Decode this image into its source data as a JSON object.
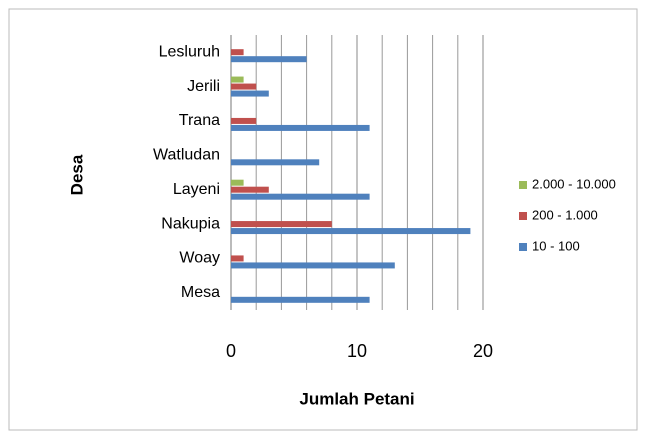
{
  "chart_data": {
    "type": "hbar",
    "xlabel": "Jumlah Petani",
    "ylabel": "Desa",
    "categories": [
      "Mesa",
      "Woay",
      "Nakupia",
      "Layeni",
      "Watludan",
      "Trana",
      "Jerili",
      "Lesluruh"
    ],
    "series": [
      {
        "name": "10 - 100",
        "color": "#4f81bd",
        "values": [
          11,
          13,
          19,
          11,
          7,
          11,
          3,
          6
        ]
      },
      {
        "name": "200 - 1.000",
        "color": "#c0504d",
        "values": [
          0,
          1,
          8,
          3,
          0,
          2,
          2,
          1
        ]
      },
      {
        "name": "2.000 - 10.000",
        "color": "#9bbb59",
        "values": [
          0,
          0,
          0,
          1,
          0,
          0,
          1,
          0
        ]
      }
    ],
    "xlim": [
      0,
      20
    ],
    "xticks": [
      0,
      10,
      20
    ],
    "minor_xticks": [
      2,
      4,
      6,
      8,
      12,
      14,
      16,
      18
    ],
    "grid": true,
    "legend": "right"
  }
}
